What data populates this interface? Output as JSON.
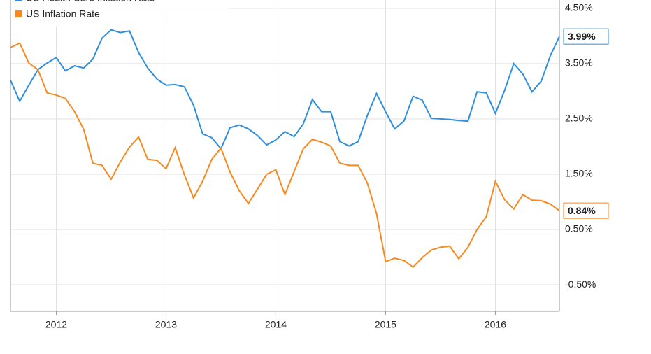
{
  "chart_data": {
    "type": "line",
    "x": [
      2011.583,
      2011.667,
      2011.75,
      2011.833,
      2011.917,
      2012.0,
      2012.083,
      2012.167,
      2012.25,
      2012.333,
      2012.417,
      2012.5,
      2012.583,
      2012.667,
      2012.75,
      2012.833,
      2012.917,
      2013.0,
      2013.083,
      2013.167,
      2013.25,
      2013.333,
      2013.417,
      2013.5,
      2013.583,
      2013.667,
      2013.75,
      2013.833,
      2013.917,
      2014.0,
      2014.083,
      2014.167,
      2014.25,
      2014.333,
      2014.417,
      2014.5,
      2014.583,
      2014.667,
      2014.75,
      2014.833,
      2014.917,
      2015.0,
      2015.083,
      2015.167,
      2015.25,
      2015.333,
      2015.417,
      2015.5,
      2015.583,
      2015.667,
      2015.75,
      2015.833,
      2015.917,
      2016.0,
      2016.083,
      2016.167,
      2016.25,
      2016.333,
      2016.417,
      2016.5,
      2016.583
    ],
    "series": [
      {
        "name": "US Health Care Inflation Rate",
        "color": "#2f8fdc",
        "values": [
          3.2,
          2.82,
          3.11,
          3.39,
          3.51,
          3.61,
          3.37,
          3.46,
          3.42,
          3.58,
          3.96,
          4.11,
          4.06,
          4.09,
          3.7,
          3.42,
          3.22,
          3.11,
          3.12,
          3.08,
          2.75,
          2.23,
          2.16,
          1.96,
          2.34,
          2.39,
          2.32,
          2.2,
          2.03,
          2.12,
          2.27,
          2.18,
          2.41,
          2.85,
          2.63,
          2.63,
          2.09,
          2.01,
          2.09,
          2.56,
          2.96,
          2.63,
          2.32,
          2.46,
          2.91,
          2.84,
          2.51,
          2.5,
          2.49,
          2.47,
          2.46,
          2.99,
          2.97,
          2.6,
          3.01,
          3.5,
          3.31,
          2.99,
          3.18,
          3.64,
          3.99
        ],
        "end_label": "3.99%"
      },
      {
        "name": "US Inflation Rate",
        "color": "#f7891f",
        "values": [
          3.79,
          3.87,
          3.51,
          3.39,
          2.97,
          2.93,
          2.87,
          2.63,
          2.31,
          1.7,
          1.66,
          1.41,
          1.72,
          1.99,
          2.17,
          1.77,
          1.75,
          1.6,
          1.98,
          1.49,
          1.07,
          1.37,
          1.77,
          1.97,
          1.54,
          1.2,
          0.97,
          1.23,
          1.5,
          1.58,
          1.13,
          1.55,
          1.96,
          2.13,
          2.08,
          2.01,
          1.7,
          1.66,
          1.66,
          1.34,
          0.79,
          -0.08,
          -0.02,
          -0.06,
          -0.18,
          -0.01,
          0.13,
          0.18,
          0.2,
          -0.03,
          0.18,
          0.5,
          0.73,
          1.37,
          1.04,
          0.87,
          1.13,
          1.03,
          1.02,
          0.96,
          0.84
        ],
        "end_label": "0.84%"
      }
    ],
    "xlim": [
      2011.583,
      2016.583
    ],
    "xticks": [
      2012,
      2013,
      2014,
      2015,
      2016
    ],
    "ylim": [
      -0.98,
      4.65
    ],
    "yticks": [
      {
        "value": -0.5,
        "label": "-0.50%"
      },
      {
        "value": 0.5,
        "label": "0.50%"
      },
      {
        "value": 1.5,
        "label": "1.50%"
      },
      {
        "value": 2.5,
        "label": "2.50%"
      },
      {
        "value": 3.5,
        "label": "3.50%"
      },
      {
        "value": 4.5,
        "label": "4.50%"
      }
    ],
    "grid": true
  }
}
